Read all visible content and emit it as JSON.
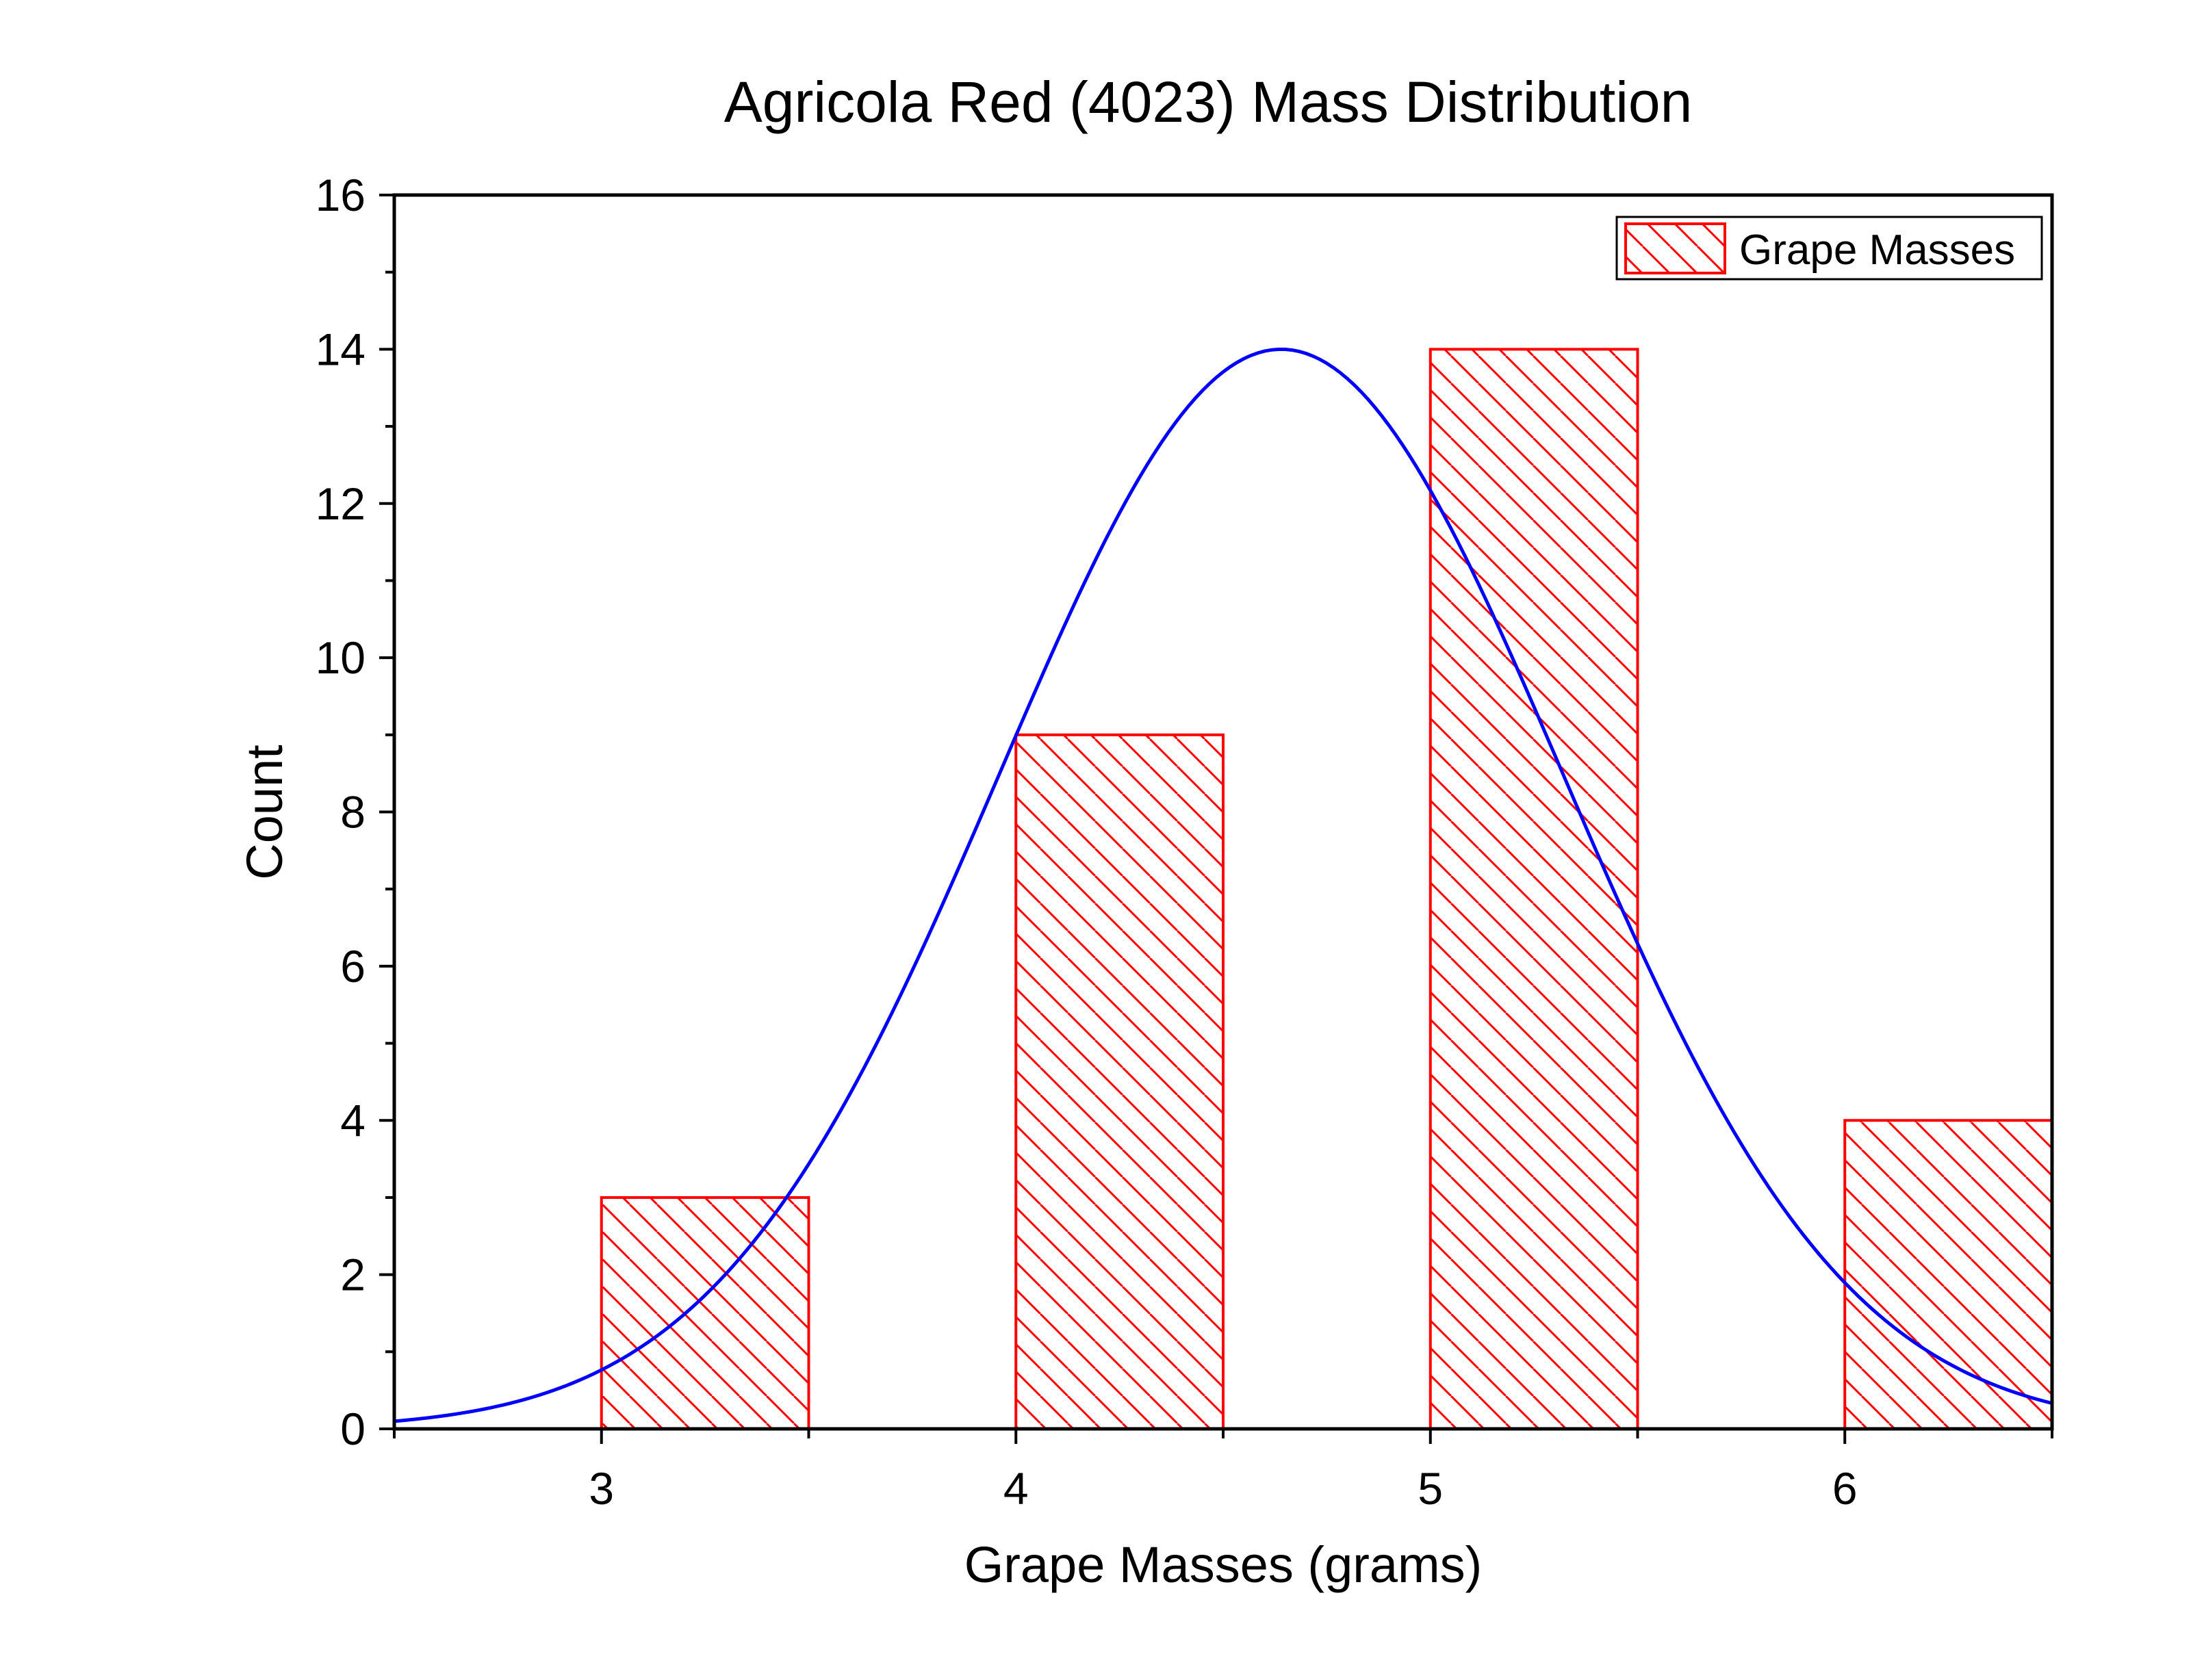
{
  "chart_data": {
    "type": "bar",
    "title": "Agricola Red (4023) Mass Distribution",
    "xlabel": "Grape Masses (grams)",
    "ylabel": "Count",
    "xlim": [
      2.5,
      6.5
    ],
    "ylim": [
      0,
      16
    ],
    "x_ticks": [
      3,
      4,
      5,
      6
    ],
    "x_tick_labels": [
      "3",
      "4",
      "5",
      "6"
    ],
    "y_ticks": [
      0,
      2,
      4,
      6,
      8,
      10,
      12,
      14,
      16
    ],
    "y_tick_labels": [
      "0",
      "2",
      "4",
      "6",
      "8",
      "10",
      "12",
      "14",
      "16"
    ],
    "grid": false,
    "legend_position": "top-right",
    "series": [
      {
        "name": "Grape Masses",
        "kind": "bar",
        "pattern": "diagonal-hatch",
        "color": "#ff0000",
        "bins": [
          {
            "start": 3.0,
            "end": 3.5,
            "value": 3
          },
          {
            "start": 4.0,
            "end": 4.5,
            "value": 9
          },
          {
            "start": 5.0,
            "end": 5.5,
            "value": 14
          },
          {
            "start": 6.0,
            "end": 6.5,
            "value": 4
          }
        ]
      },
      {
        "kind": "line",
        "fit": "normal-distribution",
        "color": "#0000ff",
        "peak_x": 4.64,
        "peak_y": 14.0,
        "sigma": 0.68
      }
    ]
  }
}
